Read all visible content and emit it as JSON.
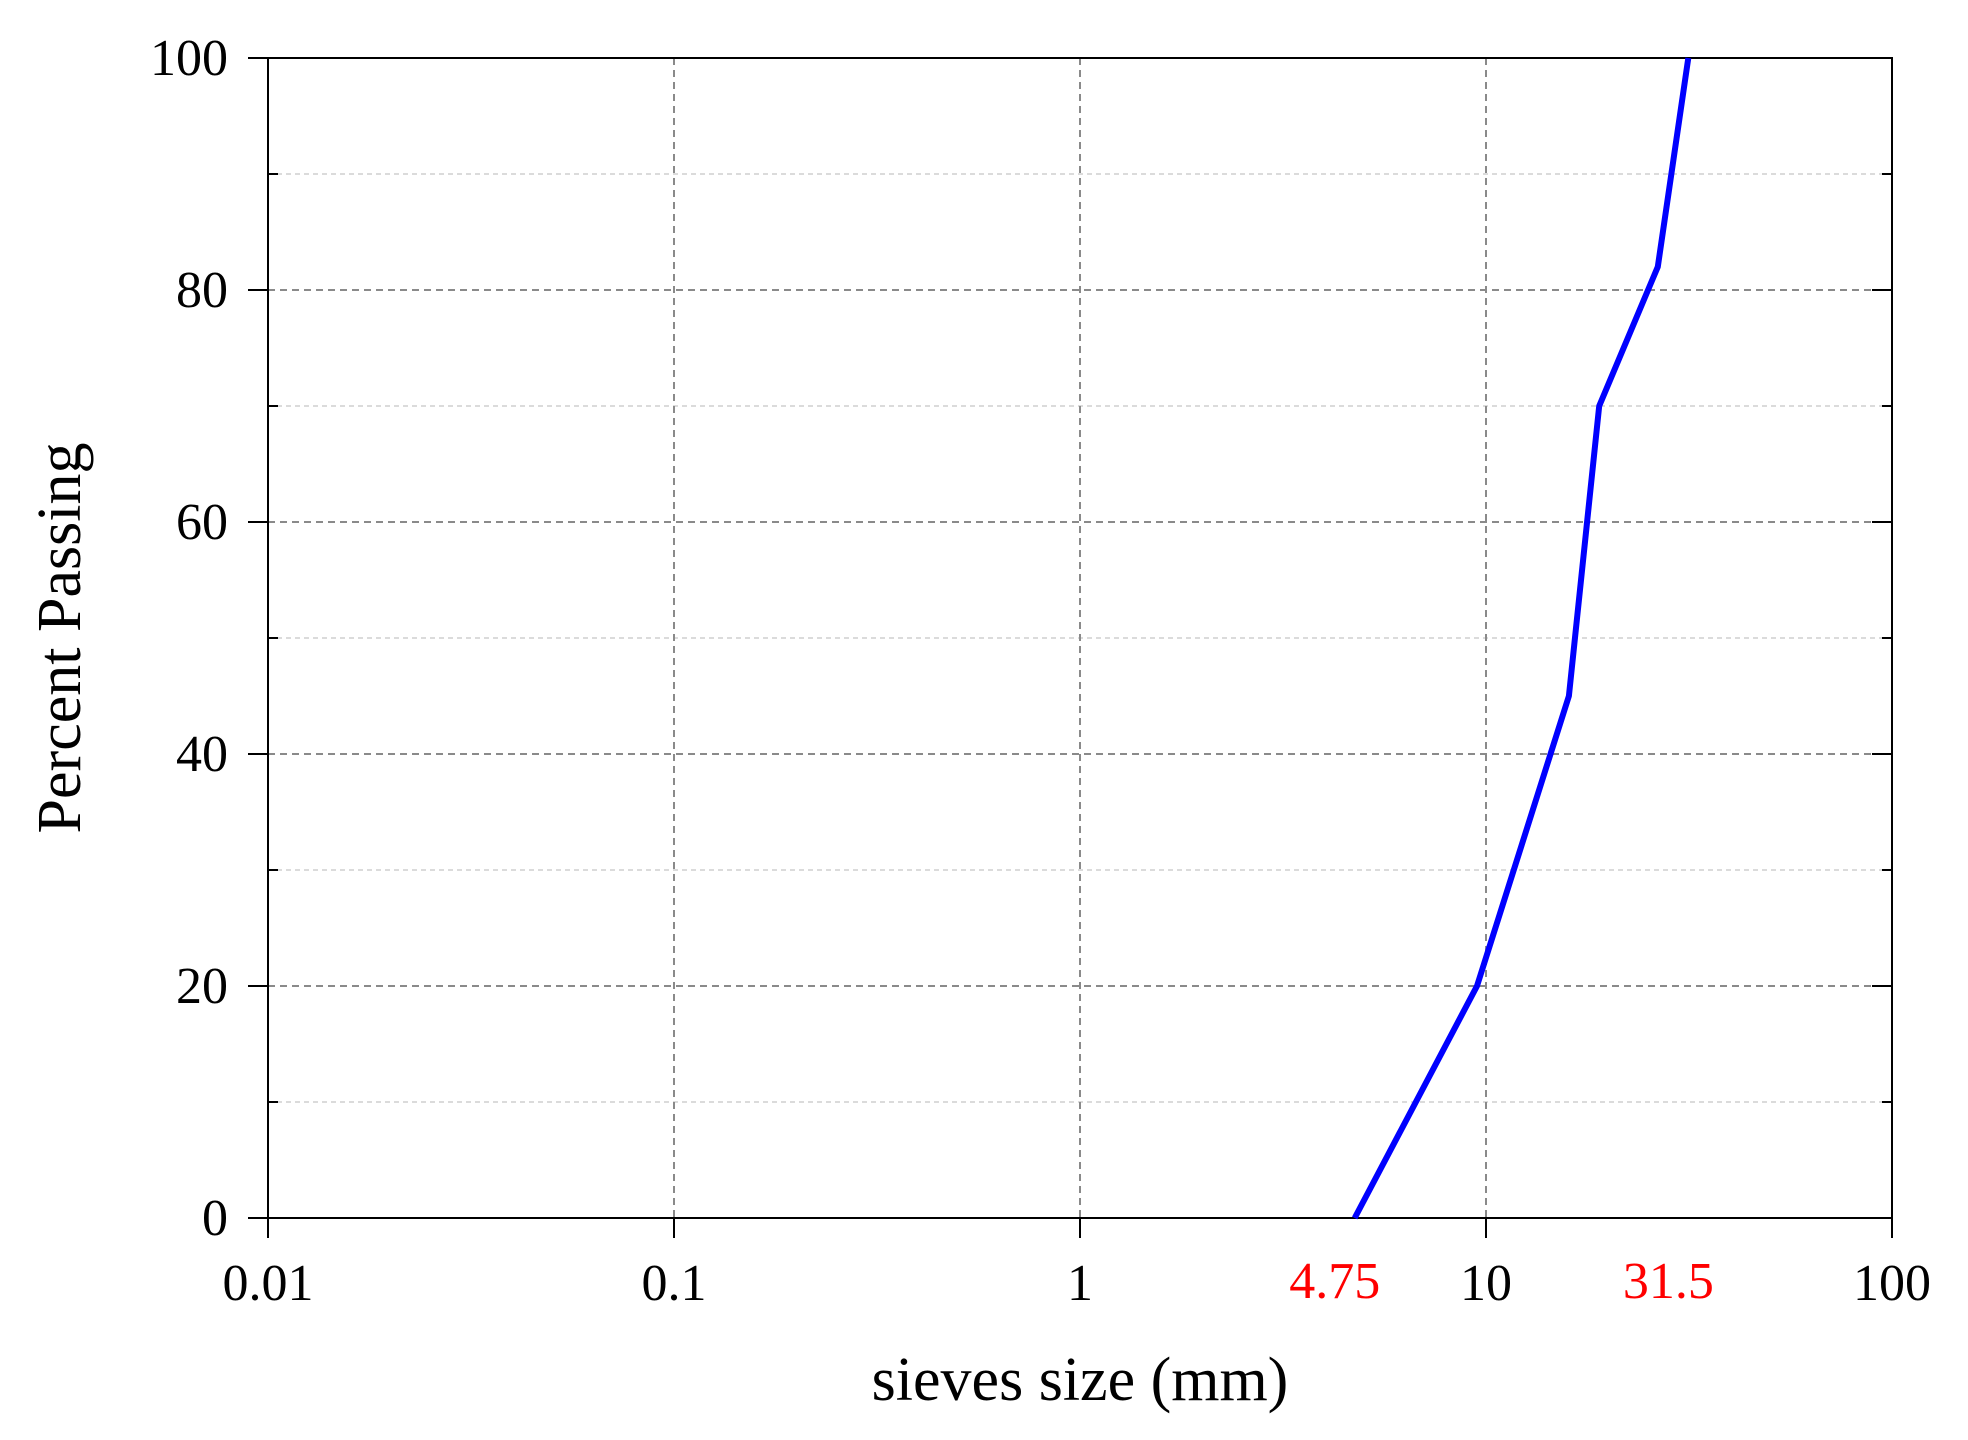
{
  "chart_data": {
    "type": "line",
    "title": "",
    "xlabel": "sieves size (mm)",
    "ylabel": "Percent Passing",
    "x_scale": "log",
    "xlim": [
      0.01,
      100
    ],
    "ylim": [
      0,
      100
    ],
    "x_ticks": [
      "0.01",
      "0.1",
      "1",
      "10",
      "100"
    ],
    "y_ticks": [
      "0",
      "20",
      "40",
      "60",
      "80",
      "100"
    ],
    "y_minor_ticks": [
      10,
      30,
      50,
      70,
      90
    ],
    "grid": true,
    "legend": "none",
    "annotations": [
      {
        "text": "4.75",
        "x": 4.75,
        "color": "#ff0000"
      },
      {
        "text": "31.5",
        "x": 31.5,
        "color": "#ff0000"
      }
    ],
    "series": [
      {
        "color": "#0000ff",
        "x": [
          4.75,
          9.5,
          16,
          19,
          26.5,
          31.5
        ],
        "y": [
          0,
          20,
          45,
          70,
          82,
          100
        ]
      }
    ]
  }
}
